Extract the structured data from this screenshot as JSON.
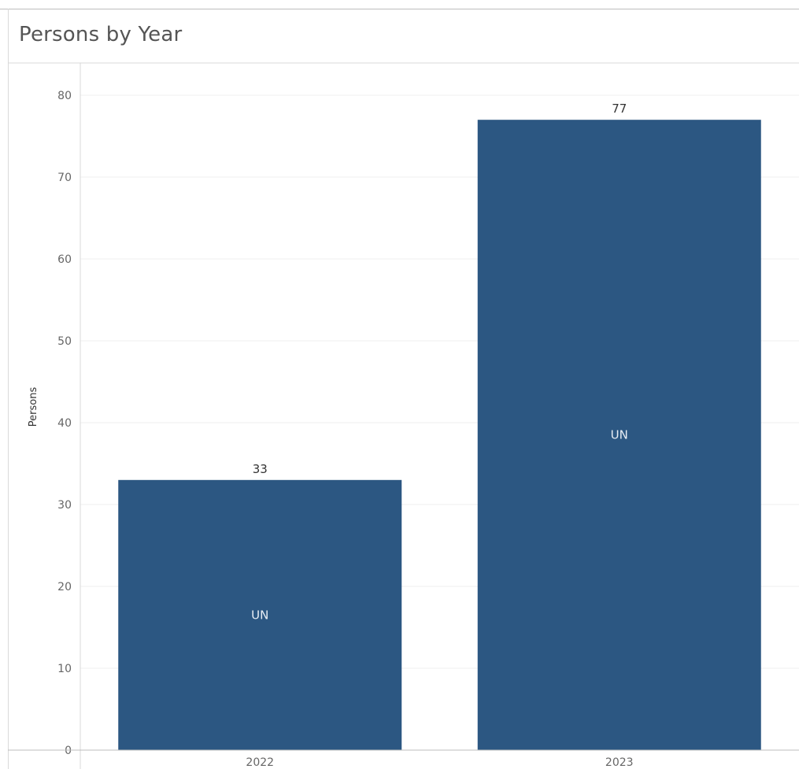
{
  "chart_data": {
    "type": "bar",
    "title": "Persons by Year",
    "xlabel": "",
    "ylabel": "Persons",
    "categories": [
      "2022",
      "2023"
    ],
    "values": [
      33,
      77
    ],
    "segment_labels": [
      "UN",
      "UN"
    ],
    "ylim": [
      0,
      80
    ],
    "yticks": [
      0,
      10,
      20,
      30,
      40,
      50,
      60,
      70,
      80
    ],
    "grid": true,
    "bar_color": "#2c5782"
  }
}
